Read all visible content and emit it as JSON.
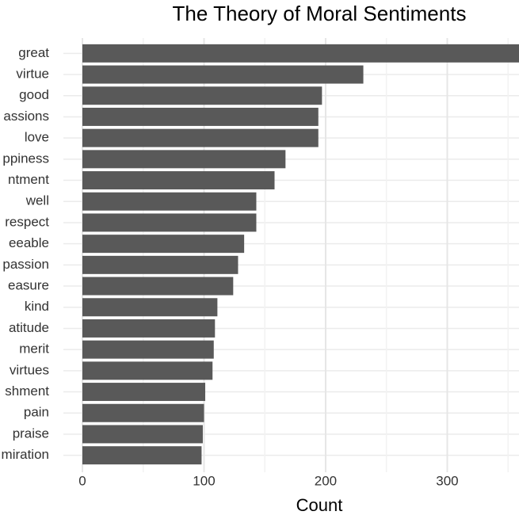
{
  "chart_data": {
    "type": "barh",
    "title": "The Theory of Moral Sentiments",
    "xlabel": "Count",
    "categories": [
      "great",
      "virtue",
      "good",
      "assions",
      "love",
      "ppiness",
      "ntment",
      "well",
      "respect",
      "eeable",
      "passion",
      "easure",
      "kind",
      "atitude",
      "merit",
      "virtues",
      "shment",
      "pain",
      "praise",
      "miration"
    ],
    "values": [
      360,
      231,
      197,
      194,
      194,
      167,
      158,
      143,
      143,
      133,
      128,
      124,
      111,
      109,
      108,
      107,
      101,
      100,
      99,
      98
    ],
    "color": "#595959",
    "xlim": [
      0,
      359
    ],
    "xticks": [
      0,
      100,
      200,
      300
    ],
    "xminorticks": [
      50,
      150,
      250,
      350
    ],
    "grid": true
  }
}
